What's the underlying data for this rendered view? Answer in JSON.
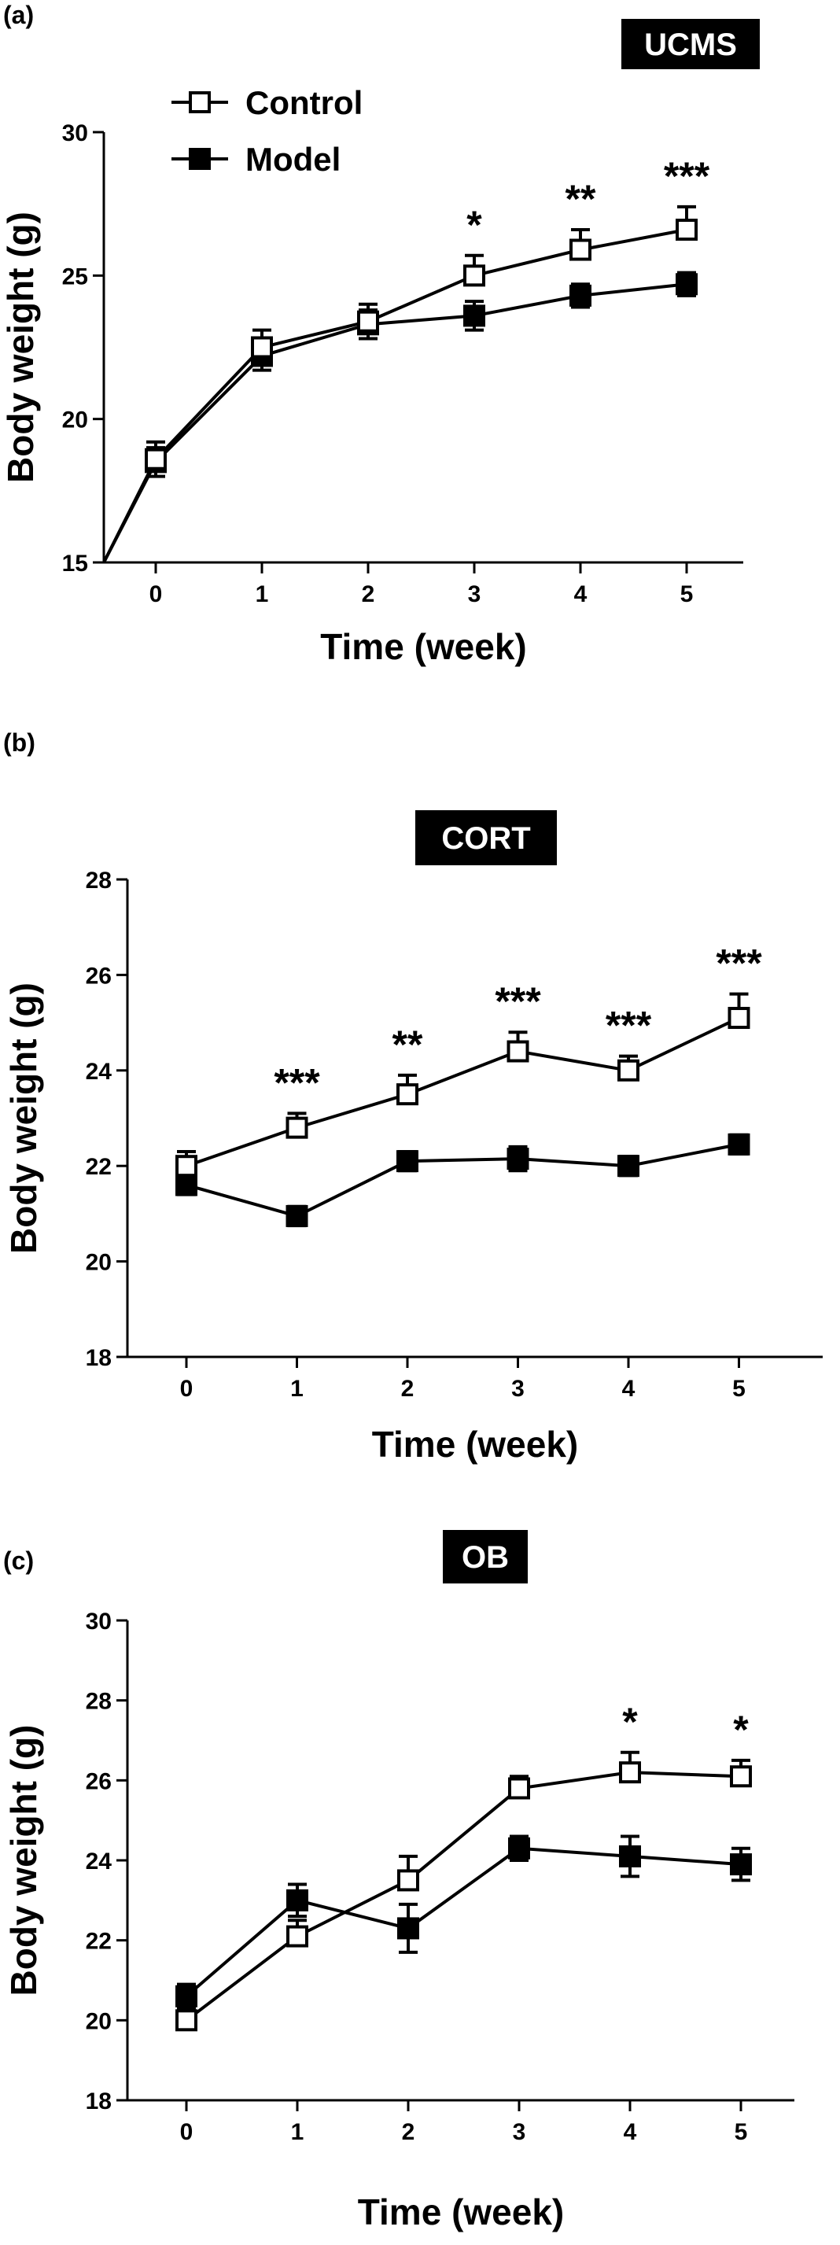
{
  "chart_data": [
    {
      "type": "line",
      "panel_label": "(a)",
      "title": "UCMS",
      "xlabel": "Time (week)",
      "ylabel": "Body weight (g)",
      "x": [
        0,
        1,
        2,
        3,
        4,
        5
      ],
      "xlim": [
        -0.5,
        5.5
      ],
      "ylim": [
        15,
        30
      ],
      "yticks": [
        15,
        20,
        25,
        30
      ],
      "legend_position": "top-left",
      "series": [
        {
          "name": "Control",
          "marker": "open-square",
          "values": [
            18.6,
            22.5,
            23.4,
            25.0,
            25.9,
            26.6
          ],
          "error": [
            0.6,
            0.6,
            0.6,
            0.7,
            0.7,
            0.8
          ]
        },
        {
          "name": "Model",
          "marker": "filled-square",
          "values": [
            18.5,
            22.2,
            23.3,
            23.6,
            24.3,
            24.7
          ],
          "error": [
            0.5,
            0.5,
            0.5,
            0.5,
            0.4,
            0.4
          ]
        }
      ],
      "significance": [
        {
          "x": 3,
          "label": "*"
        },
        {
          "x": 4,
          "label": "**"
        },
        {
          "x": 5,
          "label": "***"
        }
      ]
    },
    {
      "type": "line",
      "panel_label": "(b)",
      "title": "CORT",
      "xlabel": "Time (week)",
      "ylabel": "Body weight (g)",
      "x": [
        0,
        1,
        2,
        3,
        4,
        5
      ],
      "xlim": [
        -0.5,
        5.5
      ],
      "ylim": [
        18,
        28
      ],
      "yticks": [
        18,
        20,
        22,
        24,
        26,
        28
      ],
      "series": [
        {
          "name": "Control",
          "marker": "open-square",
          "values": [
            22.0,
            22.8,
            23.5,
            24.4,
            24.0,
            25.1
          ],
          "error": [
            0.3,
            0.3,
            0.4,
            0.4,
            0.3,
            0.5
          ]
        },
        {
          "name": "Model",
          "marker": "filled-square",
          "values": [
            21.6,
            20.95,
            22.1,
            22.15,
            22.0,
            22.45
          ],
          "error": [
            0.2,
            0.2,
            0.2,
            0.25,
            0.2,
            0.2
          ]
        }
      ],
      "significance": [
        {
          "x": 1,
          "label": "***"
        },
        {
          "x": 2,
          "label": "**"
        },
        {
          "x": 3,
          "label": "***"
        },
        {
          "x": 4,
          "label": "***"
        },
        {
          "x": 5,
          "label": "***"
        }
      ]
    },
    {
      "type": "line",
      "panel_label": "(c)",
      "title": "OB",
      "xlabel": "Time (week)",
      "ylabel": "Body weight (g)",
      "x": [
        0,
        1,
        2,
        3,
        4,
        5
      ],
      "xlim": [
        -0.5,
        5.5
      ],
      "ylim": [
        18,
        30
      ],
      "yticks": [
        18,
        20,
        22,
        24,
        26,
        28,
        30
      ],
      "series": [
        {
          "name": "Control",
          "marker": "open-square",
          "values": [
            20.0,
            22.1,
            23.5,
            25.8,
            26.2,
            26.1
          ],
          "error": [
            0.3,
            0.4,
            0.6,
            0.3,
            0.5,
            0.4
          ]
        },
        {
          "name": "Model",
          "marker": "filled-square",
          "values": [
            20.6,
            23.0,
            22.3,
            24.3,
            24.1,
            23.9
          ],
          "error": [
            0.3,
            0.4,
            0.6,
            0.3,
            0.5,
            0.4
          ]
        }
      ],
      "significance": [
        {
          "x": 4,
          "label": "*"
        },
        {
          "x": 5,
          "label": "*"
        }
      ]
    }
  ]
}
